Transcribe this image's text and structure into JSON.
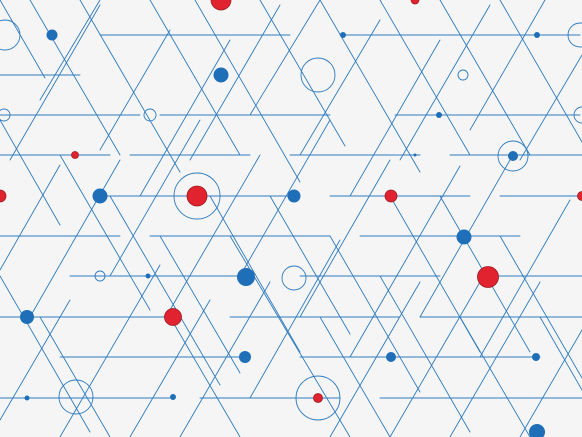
{
  "pattern": {
    "line_color": "#2e7bbf",
    "blue_node_color": "#1f6fb8",
    "red_node_color": "#e0232e",
    "red_node_stroke": "#9c1a22",
    "background": "#f5f5f5"
  }
}
